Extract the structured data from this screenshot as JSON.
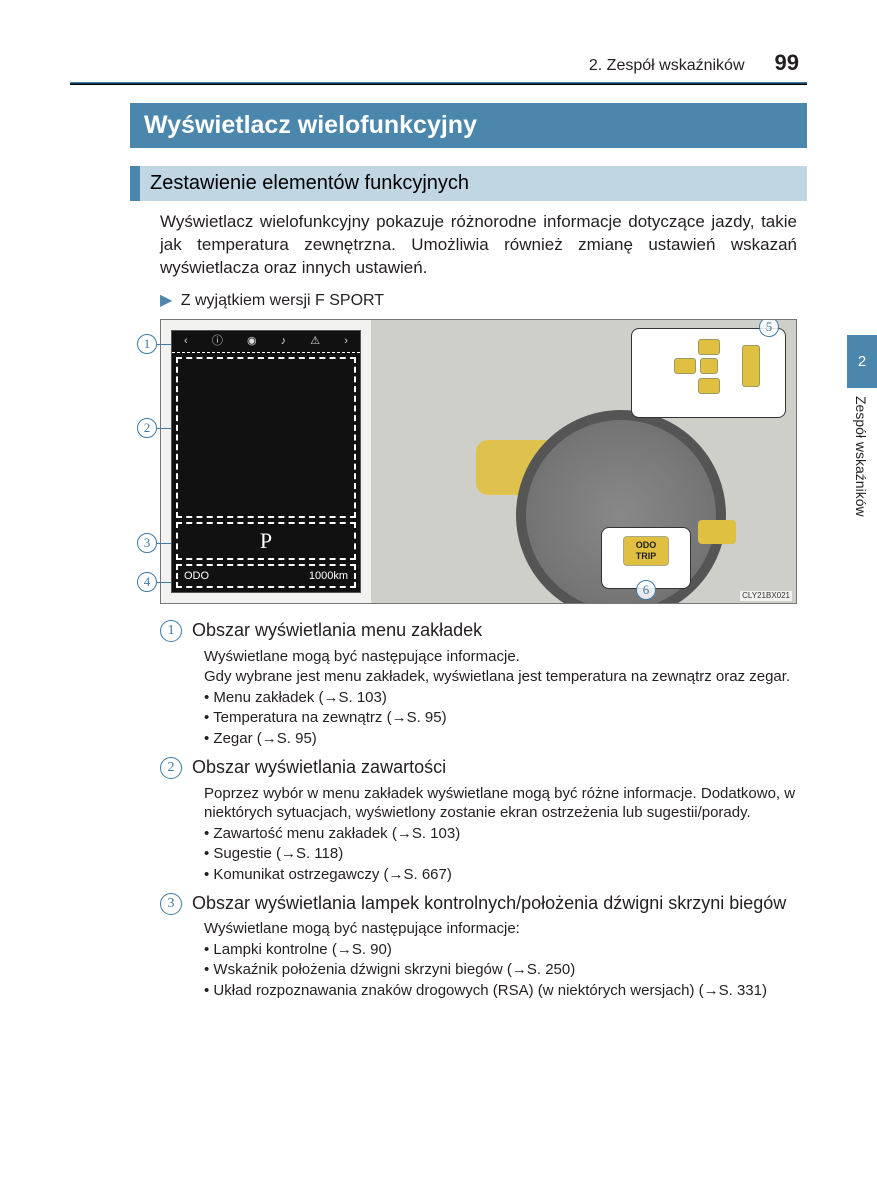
{
  "header": {
    "section": "2. Zespół wskaźników",
    "page": "99"
  },
  "sideTab": {
    "chapter": "2",
    "label": "Zespół wskaźników"
  },
  "mainTitle": "Wyświetlacz wielofunkcyjny",
  "subTitle": "Zestawienie elementów funkcyjnych",
  "intro": "Wyświetlacz wielofunkcyjny pokazuje różnorodne informacje dotyczące jazdy, takie jak temperatura zewnętrzna. Umożliwia również zmianę ustawień wskazań wyświetlacza oraz innych ustawień.",
  "variant": "Z wyjątkiem wersji F SPORT",
  "figure": {
    "gear": "P",
    "odoLabel": "ODO",
    "odoValue": "1000km",
    "btnLabel1": "ODO",
    "btnLabel2": "TRIP",
    "id": "CLY21BX021",
    "callouts": {
      "b1": "1",
      "b2": "2",
      "b3": "3",
      "b4": "4",
      "b5": "5",
      "b6": "6"
    }
  },
  "items": [
    {
      "num": "1",
      "title": "Obszar wyświetlania menu zakładek",
      "lines": [
        "Wyświetlane mogą być następujące informacje.",
        "Gdy wybrane jest menu zakładek, wyświetlana jest temperatura na zewnątrz oraz zegar."
      ],
      "bullets": [
        "Menu zakładek (→S. 103)",
        "Temperatura na zewnątrz (→S. 95)",
        "Zegar (→S. 95)"
      ]
    },
    {
      "num": "2",
      "title": "Obszar wyświetlania zawartości",
      "lines": [
        "Poprzez wybór w menu zakładek wyświetlane mogą być różne informacje. Dodatkowo, w niektórych sytuacjach, wyświetlony zostanie ekran ostrzeżenia lub sugestii/porady."
      ],
      "bullets": [
        "Zawartość menu zakładek (→S. 103)",
        "Sugestie (→S. 118)",
        "Komunikat ostrzegawczy (→S. 667)"
      ]
    },
    {
      "num": "3",
      "title": "Obszar wyświetlania lampek kontrolnych/położenia dźwigni skrzyni biegów",
      "lines": [
        "Wyświetlane mogą być następujące informacje:"
      ],
      "bullets": [
        "Lampki kontrolne (→S. 90)",
        "Wskaźnik położenia dźwigni skrzyni biegów (→S. 250)",
        "Układ rozpoznawania znaków drogowych (RSA) (w niektórych wersjach) (→S. 331)"
      ]
    }
  ],
  "colors": {
    "primary": "#4b86ac",
    "subBg": "#c1d6e3",
    "highlight": "#e0c040"
  }
}
